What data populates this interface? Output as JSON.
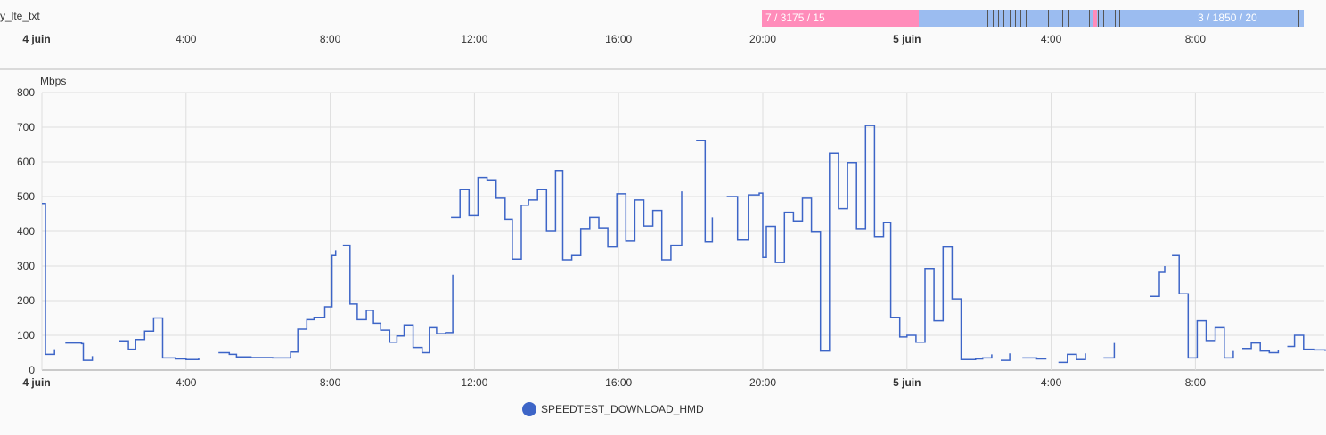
{
  "timeline": {
    "track_label": "y_lte_txt",
    "ticks": [
      {
        "label": "4 juin",
        "bold": true,
        "hour": 0
      },
      {
        "label": "4:00",
        "bold": false,
        "hour": 4
      },
      {
        "label": "8:00",
        "bold": false,
        "hour": 8
      },
      {
        "label": "12:00",
        "bold": false,
        "hour": 12
      },
      {
        "label": "16:00",
        "bold": false,
        "hour": 16
      },
      {
        "label": "20:00",
        "bold": false,
        "hour": 20
      },
      {
        "label": "5 juin",
        "bold": true,
        "hour": 24
      },
      {
        "label": "4:00",
        "bold": false,
        "hour": 28
      },
      {
        "label": "8:00",
        "bold": false,
        "hour": 32
      }
    ],
    "segments": [
      {
        "label": "7 / 3175 / 15",
        "start_hour": 20.0,
        "end_hour": 24.35,
        "color": "#ff8cba"
      },
      {
        "label": "3 / 1850 / 20",
        "start_hour": 24.35,
        "end_hour": 35.0,
        "color": "#9bbcf0"
      }
    ],
    "event_colors": {
      "dark": "#555555",
      "pink": "#ff8cba"
    }
  },
  "chart_data": {
    "type": "line",
    "step": true,
    "ylabel": "Mbps",
    "ylim": [
      0,
      800
    ],
    "yticks": [
      0,
      100,
      200,
      300,
      400,
      500,
      600,
      700,
      800
    ],
    "xlim_hours": [
      0,
      35.6
    ],
    "xticks": [
      {
        "label": "4 juin",
        "bold": true,
        "hour": 0
      },
      {
        "label": "4:00",
        "bold": false,
        "hour": 4
      },
      {
        "label": "8:00",
        "bold": false,
        "hour": 8
      },
      {
        "label": "12:00",
        "bold": false,
        "hour": 12
      },
      {
        "label": "16:00",
        "bold": false,
        "hour": 16
      },
      {
        "label": "20:00",
        "bold": false,
        "hour": 20
      },
      {
        "label": "5 juin",
        "bold": true,
        "hour": 24
      },
      {
        "label": "4:00",
        "bold": false,
        "hour": 28
      },
      {
        "label": "8:00",
        "bold": false,
        "hour": 32
      }
    ],
    "grid": true,
    "series": [
      {
        "name": "SPEEDTEST_DOWNLOAD_HMD",
        "color": "#3d65c7",
        "segments": [
          [
            [
              0.0,
              480
            ],
            [
              0.1,
              45
            ],
            [
              0.35,
              60
            ]
          ],
          [
            [
              0.65,
              78
            ],
            [
              1.1,
              76
            ],
            [
              1.15,
              28
            ],
            [
              1.4,
              40
            ]
          ],
          [
            [
              2.15,
              84
            ],
            [
              2.4,
              60
            ],
            [
              2.6,
              88
            ],
            [
              2.85,
              112
            ],
            [
              3.1,
              150
            ],
            [
              3.35,
              35
            ],
            [
              3.7,
              32
            ],
            [
              4.0,
              30
            ],
            [
              4.35,
              35
            ]
          ],
          [
            [
              4.9,
              50
            ],
            [
              5.2,
              45
            ],
            [
              5.4,
              38
            ],
            [
              5.8,
              36
            ],
            [
              6.4,
              35
            ],
            [
              6.9,
              52
            ],
            [
              7.1,
              118
            ],
            [
              7.35,
              145
            ],
            [
              7.55,
              152
            ],
            [
              7.85,
              182
            ],
            [
              8.05,
              330
            ],
            [
              8.15,
              345
            ]
          ],
          [
            [
              8.35,
              360
            ],
            [
              8.55,
              190
            ],
            [
              8.75,
              145
            ],
            [
              9.0,
              172
            ],
            [
              9.2,
              135
            ],
            [
              9.4,
              115
            ],
            [
              9.65,
              80
            ],
            [
              9.85,
              98
            ],
            [
              10.05,
              130
            ],
            [
              10.3,
              65
            ],
            [
              10.55,
              50
            ],
            [
              10.75,
              122
            ],
            [
              10.95,
              105
            ],
            [
              11.2,
              108
            ],
            [
              11.4,
              275
            ]
          ],
          [
            [
              11.4,
              110
            ]
          ],
          [
            [
              11.35,
              440
            ],
            [
              11.6,
              520
            ],
            [
              11.85,
              445
            ],
            [
              12.1,
              555
            ],
            [
              12.35,
              548
            ],
            [
              12.6,
              495
            ],
            [
              12.85,
              435
            ],
            [
              13.05,
              320
            ],
            [
              13.3,
              475
            ],
            [
              13.5,
              490
            ],
            [
              13.75,
              520
            ],
            [
              14.0,
              400
            ],
            [
              14.25,
              575
            ],
            [
              14.45,
              318
            ],
            [
              14.7,
              330
            ],
            [
              14.95,
              408
            ],
            [
              15.2,
              440
            ],
            [
              15.45,
              410
            ],
            [
              15.7,
              355
            ],
            [
              15.95,
              508
            ],
            [
              16.2,
              372
            ],
            [
              16.45,
              490
            ],
            [
              16.7,
              415
            ],
            [
              16.95,
              460
            ],
            [
              17.2,
              318
            ],
            [
              17.45,
              360
            ],
            [
              17.75,
              515
            ]
          ],
          [
            [
              18.15,
              662
            ],
            [
              18.4,
              370
            ],
            [
              18.6,
              440
            ]
          ],
          [
            [
              19.0,
              500
            ],
            [
              19.3,
              375
            ],
            [
              19.6,
              505
            ],
            [
              19.9,
              510
            ],
            [
              20.0,
              325
            ],
            [
              20.1,
              414
            ],
            [
              20.35,
              310
            ],
            [
              20.6,
              455
            ],
            [
              20.85,
              430
            ],
            [
              21.1,
              495
            ],
            [
              21.35,
              398
            ],
            [
              21.6,
              55
            ],
            [
              21.85,
              625
            ],
            [
              22.1,
              465
            ],
            [
              22.35,
              598
            ],
            [
              22.6,
              408
            ],
            [
              22.85,
              705
            ],
            [
              23.1,
              385
            ],
            [
              23.35,
              425
            ],
            [
              23.55,
              152
            ],
            [
              23.8,
              95
            ],
            [
              24.0,
              100
            ],
            [
              24.25,
              80
            ],
            [
              24.5,
              293
            ],
            [
              24.75,
              142
            ],
            [
              25.0,
              355
            ],
            [
              25.25,
              205
            ],
            [
              25.5,
              30
            ],
            [
              25.9,
              32
            ],
            [
              26.1,
              35
            ],
            [
              26.35,
              45
            ]
          ],
          [
            [
              26.6,
              28
            ],
            [
              26.85,
              48
            ]
          ],
          [
            [
              27.2,
              35
            ],
            [
              27.6,
              32
            ],
            [
              27.85,
              30
            ]
          ],
          [
            [
              28.2,
              22
            ],
            [
              28.45,
              45
            ],
            [
              28.7,
              30
            ],
            [
              28.95,
              48
            ]
          ],
          [
            [
              29.45,
              35
            ],
            [
              29.75,
              78
            ]
          ],
          [
            [
              30.75,
              212
            ],
            [
              31.0,
              282
            ],
            [
              31.15,
              300
            ]
          ],
          [
            [
              31.35,
              330
            ],
            [
              31.55,
              220
            ],
            [
              31.8,
              35
            ],
            [
              32.05,
              142
            ],
            [
              32.3,
              85
            ],
            [
              32.55,
              122
            ],
            [
              32.8,
              35
            ],
            [
              33.05,
              55
            ]
          ],
          [
            [
              33.3,
              62
            ],
            [
              33.55,
              78
            ],
            [
              33.8,
              55
            ],
            [
              34.05,
              50
            ],
            [
              34.3,
              58
            ]
          ],
          [
            [
              34.55,
              68
            ],
            [
              34.75,
              100
            ],
            [
              35.0,
              60
            ],
            [
              35.3,
              58
            ],
            [
              35.6,
              55
            ]
          ]
        ]
      }
    ]
  },
  "legend": {
    "label": "SPEEDTEST_DOWNLOAD_HMD",
    "color": "#3d65c7"
  }
}
